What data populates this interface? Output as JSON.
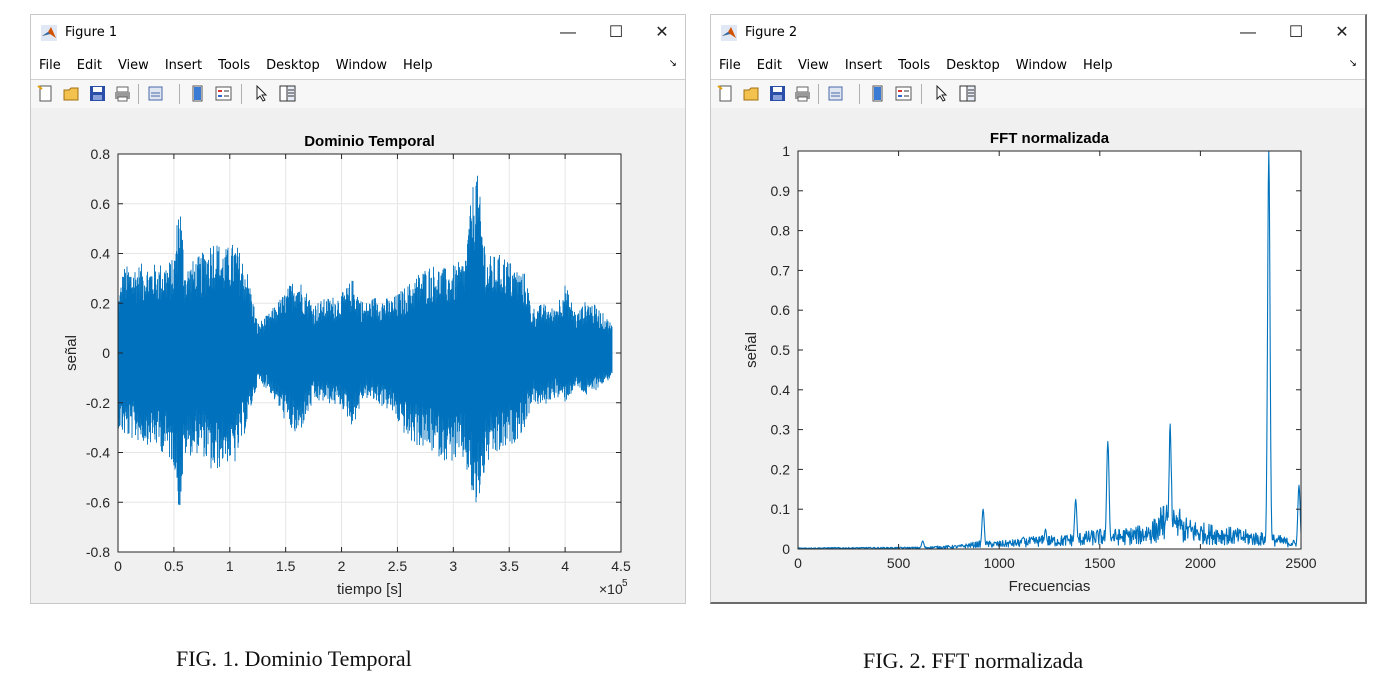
{
  "windows": [
    {
      "title": "Figure 1",
      "menu": [
        "File",
        "Edit",
        "View",
        "Insert",
        "Tools",
        "Desktop",
        "Window",
        "Help"
      ],
      "toolbar_icons": [
        "new-figure-icon",
        "open-file-icon",
        "save-icon",
        "print-icon",
        "link-plot-icon",
        "colorbar-icon",
        "legend-icon",
        "pointer-icon",
        "property-editor-icon"
      ]
    },
    {
      "title": "Figure 2",
      "menu": [
        "File",
        "Edit",
        "View",
        "Insert",
        "Tools",
        "Desktop",
        "Window",
        "Help"
      ],
      "toolbar_icons": [
        "new-figure-icon",
        "open-file-icon",
        "save-icon",
        "print-icon",
        "link-plot-icon",
        "colorbar-icon",
        "legend-icon",
        "pointer-icon",
        "property-editor-icon"
      ]
    }
  ],
  "window_controls": {
    "minimize": "—",
    "maximize": "☐",
    "close": "✕"
  },
  "colors": {
    "line": "#0072BD",
    "grid": "#e6e6e6",
    "figure_bg": "#f0f0f0"
  },
  "chart_data": [
    {
      "type": "line",
      "title": "Dominio Temporal",
      "xlabel": "tiempo [s]",
      "ylabel": "señal",
      "x_exponent_label": "×10",
      "x_exponent": "5",
      "xlim": [
        0,
        4.5
      ],
      "ylim": [
        -0.8,
        0.8
      ],
      "xticks": [
        0,
        0.5,
        1,
        1.5,
        2,
        2.5,
        3,
        3.5,
        4,
        4.5
      ],
      "xtick_labels": [
        "0",
        "0.5",
        "1",
        "1.5",
        "2",
        "2.5",
        "3",
        "3.5",
        "4",
        "4.5"
      ],
      "yticks": [
        -0.8,
        -0.6,
        -0.4,
        -0.2,
        0,
        0.2,
        0.4,
        0.6,
        0.8
      ],
      "ytick_labels": [
        "-0.8",
        "-0.6",
        "-0.4",
        "-0.2",
        "0",
        "0.2",
        "0.4",
        "0.6",
        "0.8"
      ],
      "grid": true,
      "envelope": {
        "x": [
          0,
          0.05,
          0.2,
          0.35,
          0.5,
          0.55,
          0.6,
          0.75,
          0.85,
          0.95,
          1.05,
          1.15,
          1.25,
          1.35,
          1.5,
          1.6,
          1.75,
          1.85,
          2.0,
          2.1,
          2.2,
          2.3,
          2.45,
          2.6,
          2.7,
          2.8,
          2.95,
          3.1,
          3.2,
          3.3,
          3.45,
          3.55,
          3.65,
          3.7,
          3.8,
          3.9,
          4.0,
          4.1,
          4.2,
          4.3,
          4.42
        ],
        "upper": [
          0.22,
          0.35,
          0.36,
          0.36,
          0.38,
          0.66,
          0.35,
          0.4,
          0.47,
          0.42,
          0.45,
          0.35,
          0.12,
          0.16,
          0.25,
          0.32,
          0.2,
          0.22,
          0.24,
          0.3,
          0.2,
          0.23,
          0.22,
          0.28,
          0.33,
          0.36,
          0.34,
          0.38,
          0.78,
          0.39,
          0.4,
          0.35,
          0.32,
          0.18,
          0.2,
          0.18,
          0.28,
          0.16,
          0.22,
          0.18,
          0.12
        ],
        "lower": [
          -0.3,
          -0.34,
          -0.36,
          -0.38,
          -0.45,
          -0.66,
          -0.42,
          -0.4,
          -0.5,
          -0.44,
          -0.45,
          -0.3,
          -0.12,
          -0.15,
          -0.28,
          -0.35,
          -0.2,
          -0.2,
          -0.22,
          -0.3,
          -0.18,
          -0.2,
          -0.24,
          -0.36,
          -0.38,
          -0.4,
          -0.44,
          -0.44,
          -0.66,
          -0.45,
          -0.4,
          -0.36,
          -0.3,
          -0.2,
          -0.22,
          -0.18,
          -0.2,
          -0.14,
          -0.18,
          -0.14,
          -0.1
        ]
      }
    },
    {
      "type": "line",
      "title": "FFT normalizada",
      "xlabel": "Frecuencias",
      "ylabel": "señal",
      "xlim": [
        0,
        2500
      ],
      "ylim": [
        0,
        1
      ],
      "xticks": [
        0,
        500,
        1000,
        1500,
        2000,
        2500
      ],
      "xtick_labels": [
        "0",
        "500",
        "1000",
        "1500",
        "2000",
        "2500"
      ],
      "yticks": [
        0,
        0.1,
        0.2,
        0.3,
        0.4,
        0.5,
        0.6,
        0.7,
        0.8,
        0.9,
        1
      ],
      "ytick_labels": [
        "0",
        "0.1",
        "0.2",
        "0.3",
        "0.4",
        "0.5",
        "0.6",
        "0.7",
        "0.8",
        "0.9",
        "1"
      ],
      "grid": false,
      "baseline": {
        "x": [
          0,
          600,
          800,
          900,
          1000,
          1100,
          1200,
          1300,
          1400,
          1500,
          1600,
          1700,
          1800,
          1900,
          2000,
          2100,
          2200,
          2300,
          2400,
          2500
        ],
        "y": [
          0.002,
          0.003,
          0.006,
          0.012,
          0.012,
          0.015,
          0.02,
          0.02,
          0.025,
          0.03,
          0.03,
          0.035,
          0.05,
          0.05,
          0.04,
          0.035,
          0.03,
          0.025,
          0.02,
          0.01
        ]
      },
      "peaks": [
        {
          "x": 620,
          "y": 0.02
        },
        {
          "x": 920,
          "y": 0.1
        },
        {
          "x": 1120,
          "y": 0.03
        },
        {
          "x": 1230,
          "y": 0.05
        },
        {
          "x": 1380,
          "y": 0.125
        },
        {
          "x": 1540,
          "y": 0.27
        },
        {
          "x": 1850,
          "y": 0.29
        },
        {
          "x": 2340,
          "y": 1.0
        },
        {
          "x": 2490,
          "y": 0.16
        }
      ]
    }
  ],
  "captions": [
    "FIG. 1. Dominio Temporal",
    "FIG. 2. FFT normalizada"
  ]
}
